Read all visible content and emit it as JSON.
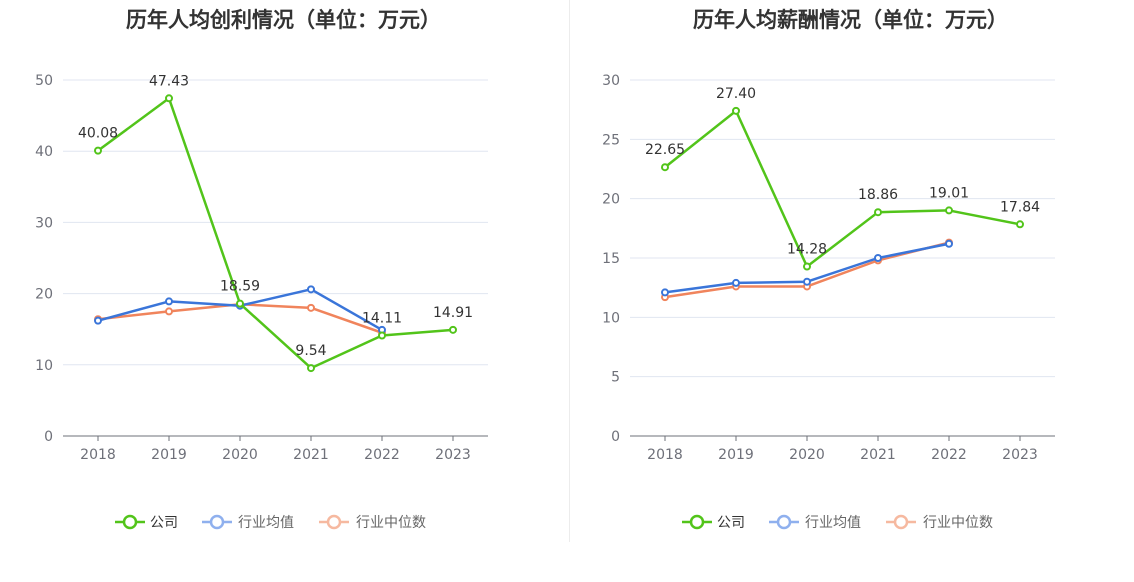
{
  "colors": {
    "company": "#52c41a",
    "avg": "#3a75d9",
    "median": "#f0845c",
    "avg_legend": "#8fb0ee",
    "median_legend": "#f6b9a0"
  },
  "legend": [
    "公司",
    "行业均值",
    "行业中位数"
  ],
  "chart_data": [
    {
      "type": "line",
      "title": "历年人均创利情况（单位：万元）",
      "categories": [
        "2018",
        "2019",
        "2020",
        "2021",
        "2022",
        "2023"
      ],
      "ylim": [
        0,
        50
      ],
      "yticks": [
        0,
        10,
        20,
        30,
        40,
        50
      ],
      "grid": true,
      "legend_position": "bottom",
      "series": [
        {
          "name": "公司",
          "values": [
            40.08,
            47.43,
            18.59,
            9.54,
            14.11,
            14.91
          ],
          "labels": [
            "40.08",
            "47.43",
            "18.59",
            "9.54",
            "14.11",
            "14.91"
          ]
        },
        {
          "name": "行业均值",
          "values": [
            16.2,
            18.9,
            18.3,
            20.6,
            14.9,
            null
          ]
        },
        {
          "name": "行业中位数",
          "values": [
            16.4,
            17.5,
            18.5,
            18.0,
            14.5,
            null
          ]
        }
      ]
    },
    {
      "type": "line",
      "title": "历年人均薪酬情况（单位：万元）",
      "categories": [
        "2018",
        "2019",
        "2020",
        "2021",
        "2022",
        "2023"
      ],
      "ylim": [
        0,
        30
      ],
      "yticks": [
        0,
        5,
        10,
        15,
        20,
        25,
        30
      ],
      "grid": true,
      "legend_position": "bottom",
      "series": [
        {
          "name": "公司",
          "values": [
            22.65,
            27.4,
            14.28,
            18.86,
            19.01,
            17.84
          ],
          "labels": [
            "22.65",
            "27.40",
            "14.28",
            "18.86",
            "19.01",
            "17.84"
          ]
        },
        {
          "name": "行业均值",
          "values": [
            12.1,
            12.9,
            13.0,
            15.0,
            16.2,
            null
          ]
        },
        {
          "name": "行业中位数",
          "values": [
            11.7,
            12.6,
            12.6,
            14.8,
            16.3,
            null
          ]
        }
      ]
    }
  ]
}
